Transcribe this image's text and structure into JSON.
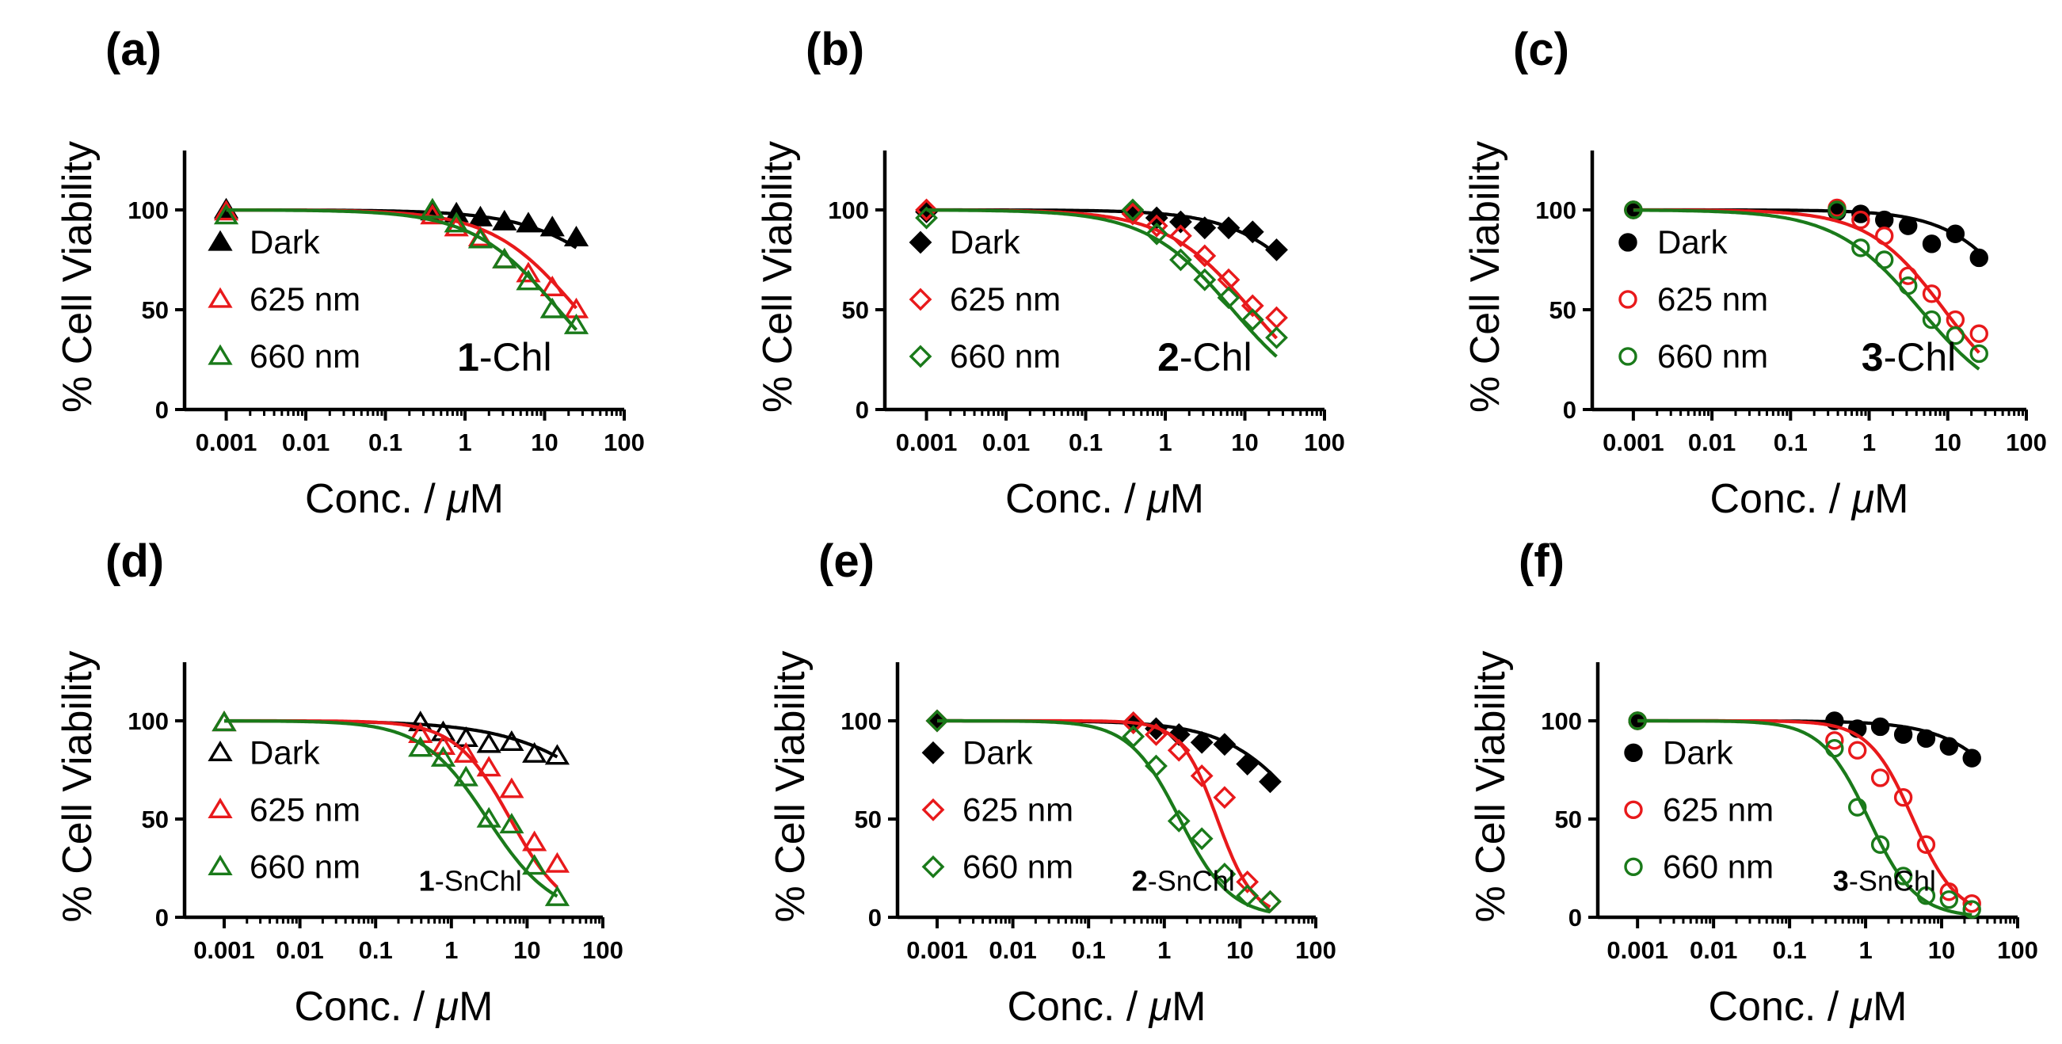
{
  "figure": {
    "colors": {
      "Dark": "#000000",
      "625 nm": "#e8191b",
      "660 nm": "#1a7a1a"
    },
    "axis_tick_labels_x": [
      "0.001",
      "0.01",
      "0.1",
      "1",
      "10",
      "100"
    ],
    "axis_tick_labels_y": [
      "0",
      "50",
      "100"
    ],
    "xlabel_prefix": "Conc. / ",
    "xlabel_unit_mu": "μ",
    "xlabel_unit_M": "M",
    "ylabel": "% Cell Viability"
  },
  "chart_data": [
    {
      "type": "scatter",
      "panel": "(a)",
      "compound_bold": "1",
      "compound_suffix": "-Chl",
      "marker": "triangle",
      "title": "",
      "xlabel": "Conc. / μM",
      "ylabel": "% Cell Viability",
      "xscale": "log",
      "xlim": [
        0.0003,
        100
      ],
      "ylim": [
        0,
        125
      ],
      "legend_position": "center-left",
      "series": [
        {
          "name": "Dark",
          "filled": true,
          "x": [
            0.001,
            0.39,
            0.78,
            1.56,
            3.13,
            6.25,
            12.5,
            25
          ],
          "y": [
            100,
            99,
            98,
            96,
            94,
            93,
            91,
            86
          ],
          "fit_ic50": 200,
          "fit_hill": 0.7
        },
        {
          "name": "625 nm",
          "filled": false,
          "x": [
            0.001,
            0.39,
            0.78,
            1.56,
            3.13,
            6.25,
            12.5,
            25
          ],
          "y": [
            99,
            97,
            91,
            86,
            75,
            68,
            61,
            50
          ],
          "fit_ic50": 26,
          "fit_hill": 0.8
        },
        {
          "name": "660 nm",
          "filled": false,
          "x": [
            0.001,
            0.39,
            0.78,
            1.56,
            3.13,
            6.25,
            12.5,
            25
          ],
          "y": [
            97,
            100,
            93,
            85,
            75,
            64,
            50,
            42
          ],
          "fit_ic50": 15,
          "fit_hill": 0.8
        }
      ]
    },
    {
      "type": "scatter",
      "panel": "(b)",
      "compound_bold": "2",
      "compound_suffix": "-Chl",
      "marker": "diamond",
      "title": "",
      "xlabel": "Conc. / μM",
      "ylabel": "% Cell Viability",
      "xscale": "log",
      "xlim": [
        0.0003,
        100
      ],
      "ylim": [
        0,
        125
      ],
      "legend_position": "center-left",
      "series": [
        {
          "name": "Dark",
          "filled": true,
          "x": [
            0.001,
            0.39,
            0.78,
            1.56,
            3.13,
            6.25,
            12.5,
            25
          ],
          "y": [
            99,
            99,
            96,
            94,
            91,
            91,
            89,
            80
          ],
          "fit_ic50": 120,
          "fit_hill": 0.8
        },
        {
          "name": "625 nm",
          "filled": false,
          "x": [
            0.001,
            0.39,
            0.78,
            1.56,
            3.13,
            6.25,
            12.5,
            25
          ],
          "y": [
            100,
            98,
            92,
            87,
            77,
            65,
            52,
            46
          ],
          "fit_ic50": 12,
          "fit_hill": 0.8
        },
        {
          "name": "660 nm",
          "filled": false,
          "x": [
            0.001,
            0.39,
            0.78,
            1.56,
            3.13,
            6.25,
            12.5,
            25
          ],
          "y": [
            96,
            100,
            88,
            75,
            65,
            56,
            45,
            36
          ],
          "fit_ic50": 7,
          "fit_hill": 0.8
        }
      ]
    },
    {
      "type": "scatter",
      "panel": "(c)",
      "compound_bold": "3",
      "compound_suffix": "-Chl",
      "marker": "circle",
      "title": "",
      "xlabel": "Conc. / μM",
      "ylabel": "% Cell Viability",
      "xscale": "log",
      "xlim": [
        0.0003,
        100
      ],
      "ylim": [
        0,
        125
      ],
      "legend_position": "center-left",
      "series": [
        {
          "name": "Dark",
          "filled": true,
          "x": [
            0.001,
            0.39,
            0.78,
            1.56,
            3.13,
            6.25,
            12.5,
            25
          ],
          "y": [
            100,
            99,
            98,
            95,
            92,
            83,
            88,
            76
          ],
          "fit_ic50": 110,
          "fit_hill": 0.9
        },
        {
          "name": "625 nm",
          "filled": false,
          "x": [
            0.001,
            0.39,
            0.78,
            1.56,
            3.13,
            6.25,
            12.5,
            25
          ],
          "y": [
            100,
            101,
            95,
            87,
            67,
            58,
            45,
            38
          ],
          "fit_ic50": 9,
          "fit_hill": 0.9
        },
        {
          "name": "660 nm",
          "filled": false,
          "x": [
            0.001,
            0.39,
            0.78,
            1.56,
            3.13,
            6.25,
            12.5,
            25
          ],
          "y": [
            100,
            100,
            81,
            75,
            62,
            45,
            37,
            28
          ],
          "fit_ic50": 4.5,
          "fit_hill": 0.8
        }
      ]
    },
    {
      "type": "scatter",
      "panel": "(d)",
      "compound_bold": "1",
      "compound_suffix": "-SnChl",
      "marker": "triangle",
      "title": "",
      "xlabel": "Conc. / μM",
      "ylabel": "% Cell Viability",
      "xscale": "log",
      "xlim": [
        0.0003,
        100
      ],
      "ylim": [
        0,
        125
      ],
      "legend_position": "center-left",
      "series": [
        {
          "name": "Dark",
          "filled": false,
          "x": [
            0.001,
            0.39,
            0.78,
            1.56,
            3.13,
            6.25,
            12.5,
            25
          ],
          "y": [
            99,
            99,
            94,
            91,
            88,
            89,
            83,
            82
          ],
          "fit_ic50": 300,
          "fit_hill": 0.6
        },
        {
          "name": "625 nm",
          "filled": false,
          "x": [
            0.001,
            0.39,
            0.78,
            1.56,
            3.13,
            6.25,
            12.5,
            25
          ],
          "y": [
            99,
            93,
            87,
            83,
            76,
            65,
            38,
            27
          ],
          "fit_ic50": 6,
          "fit_hill": 1.2
        },
        {
          "name": "660 nm",
          "filled": false,
          "x": [
            0.001,
            0.39,
            0.78,
            1.56,
            3.13,
            6.25,
            12.5,
            25
          ],
          "y": [
            99,
            86,
            81,
            71,
            50,
            47,
            26,
            10
          ],
          "fit_ic50": 3,
          "fit_hill": 1.0
        }
      ]
    },
    {
      "type": "scatter",
      "panel": "(e)",
      "compound_bold": "2",
      "compound_suffix": "-SnChl",
      "marker": "diamond",
      "title": "",
      "xlabel": "Conc. / μM",
      "ylabel": "% Cell Viability",
      "xscale": "log",
      "xlim": [
        0.0003,
        100
      ],
      "ylim": [
        0,
        125
      ],
      "legend_position": "center-left",
      "series": [
        {
          "name": "Dark",
          "filled": true,
          "x": [
            0.001,
            0.39,
            0.78,
            1.56,
            3.13,
            6.25,
            12.5,
            25
          ],
          "y": [
            100,
            99,
            96,
            93,
            89,
            88,
            78,
            69
          ],
          "fit_ic50": 90,
          "fit_hill": 0.8
        },
        {
          "name": "625 nm",
          "filled": false,
          "x": [
            0.001,
            0.39,
            0.78,
            1.56,
            3.13,
            6.25,
            12.5,
            25
          ],
          "y": [
            100,
            99,
            93,
            85,
            72,
            61,
            18,
            8
          ],
          "fit_ic50": 5,
          "fit_hill": 1.8
        },
        {
          "name": "660 nm",
          "filled": false,
          "x": [
            0.001,
            0.39,
            0.78,
            1.56,
            3.13,
            6.25,
            12.5,
            25
          ],
          "y": [
            100,
            92,
            77,
            49,
            40,
            22,
            11,
            8
          ],
          "fit_ic50": 1.6,
          "fit_hill": 1.3
        }
      ]
    },
    {
      "type": "scatter",
      "panel": "(f)",
      "compound_bold": "3",
      "compound_suffix": "-SnChl",
      "marker": "circle",
      "title": "",
      "xlabel": "Conc. / μM",
      "ylabel": "% Cell Viability",
      "xscale": "log",
      "xlim": [
        0.0003,
        100
      ],
      "ylim": [
        0,
        125
      ],
      "legend_position": "center-left",
      "series": [
        {
          "name": "Dark",
          "filled": true,
          "x": [
            0.001,
            0.39,
            0.78,
            1.56,
            3.13,
            6.25,
            12.5,
            25
          ],
          "y": [
            100,
            100,
            96,
            97,
            93,
            91,
            87,
            81
          ],
          "fit_ic50": 150,
          "fit_hill": 0.9
        },
        {
          "name": "625 nm",
          "filled": false,
          "x": [
            0.001,
            0.39,
            0.78,
            1.56,
            3.13,
            6.25,
            12.5,
            25
          ],
          "y": [
            100,
            90,
            85,
            71,
            61,
            37,
            13,
            7
          ],
          "fit_ic50": 4.2,
          "fit_hill": 1.5
        },
        {
          "name": "660 nm",
          "filled": false,
          "x": [
            0.001,
            0.39,
            0.78,
            1.56,
            3.13,
            6.25,
            12.5,
            25
          ],
          "y": [
            100,
            86,
            56,
            37,
            21,
            11,
            9,
            4
          ],
          "fit_ic50": 1.1,
          "fit_hill": 1.4
        }
      ]
    }
  ]
}
